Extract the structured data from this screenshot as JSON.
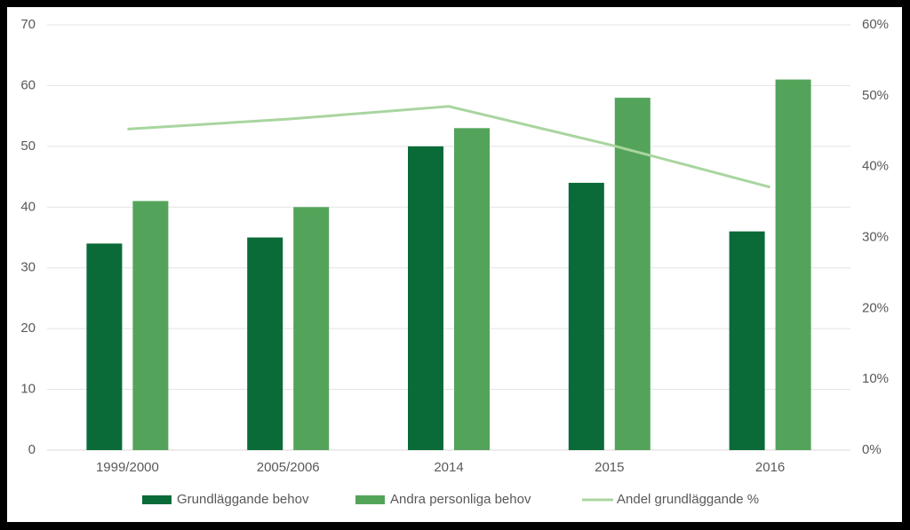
{
  "chart_data": {
    "type": "bar-line",
    "categories": [
      "1999/2000",
      "2005/2006",
      "2014",
      "2015",
      "2016"
    ],
    "series": [
      {
        "name": "Grundläggande behov",
        "color": "#0a6b38",
        "type": "bar",
        "values": [
          34,
          35,
          50,
          44,
          36
        ]
      },
      {
        "name": "Andra personliga behov",
        "color": "#53a45a",
        "type": "bar",
        "values": [
          41,
          40,
          53,
          58,
          61
        ]
      },
      {
        "name": "Andel grundläggande %",
        "color": "#a9d5a0",
        "type": "line",
        "axis": "y2",
        "values": [
          45.3,
          46.7,
          48.5,
          43.1,
          37.1
        ]
      }
    ],
    "ylim": [
      0,
      70
    ],
    "yticks": [
      0,
      10,
      20,
      30,
      40,
      50,
      60,
      70
    ],
    "y2lim": [
      0,
      60
    ],
    "y2ticks": [
      {
        "value": 0,
        "label": "0%"
      },
      {
        "value": 10,
        "label": "10%"
      },
      {
        "value": 20,
        "label": "20%"
      },
      {
        "value": 30,
        "label": "30%"
      },
      {
        "value": 40,
        "label": "40%"
      },
      {
        "value": 50,
        "label": "50%"
      },
      {
        "value": 60,
        "label": "60%"
      }
    ],
    "grid": true,
    "legend": "bottom"
  }
}
